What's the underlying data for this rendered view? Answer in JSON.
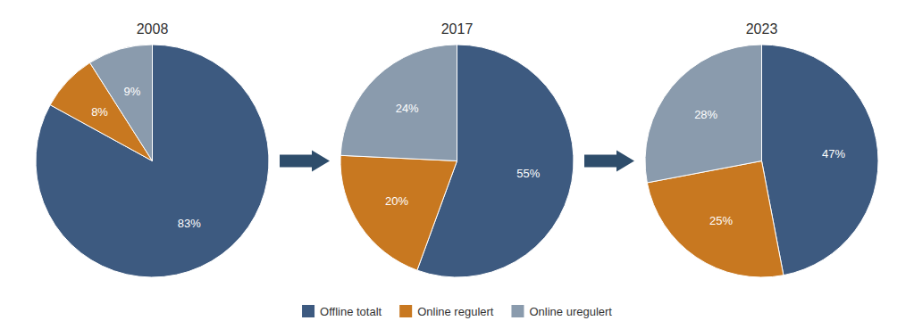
{
  "chart_data": {
    "type": "pie",
    "categories": [
      "Offline totalt",
      "Online regulert",
      "Online uregulert"
    ],
    "colors": [
      "#3D5A80",
      "#C87820",
      "#8A9BAD"
    ],
    "series": [
      {
        "name": "2008",
        "values": [
          83,
          8,
          9
        ],
        "value_labels": [
          "83%",
          "8%",
          "9%"
        ]
      },
      {
        "name": "2017",
        "values": [
          55,
          20,
          24
        ],
        "value_labels": [
          "55%",
          "20%",
          "24%"
        ]
      },
      {
        "name": "2023",
        "values": [
          47,
          25,
          28
        ],
        "value_labels": [
          "47%",
          "25%",
          "28%"
        ]
      }
    ],
    "data_labels": true,
    "legend": "bottom"
  }
}
